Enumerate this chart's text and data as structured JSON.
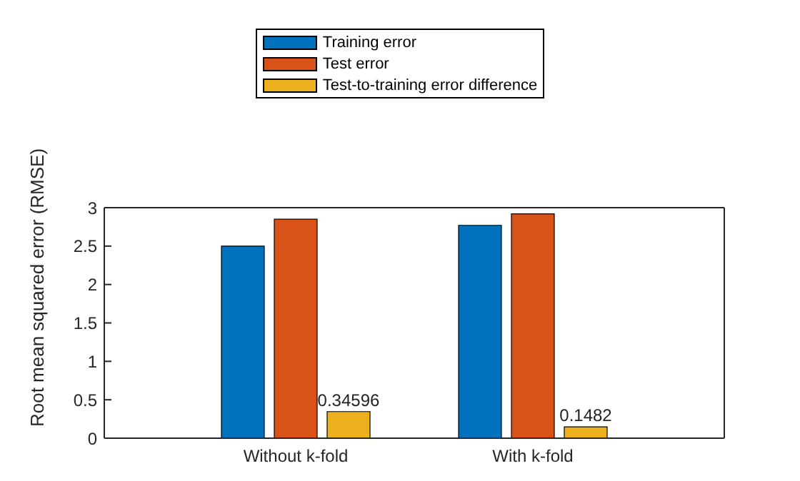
{
  "chart_data": {
    "type": "bar",
    "ylabel": "Root mean squared error (RMSE)",
    "categories": [
      "Without k-fold",
      "With k-fold"
    ],
    "series": [
      {
        "name": "Training error",
        "color": "#0072bd",
        "values": [
          2.5,
          2.77
        ]
      },
      {
        "name": "Test error",
        "color": "#d95319",
        "values": [
          2.85,
          2.92
        ]
      },
      {
        "name": "Test-to-training error difference",
        "color": "#edb120",
        "values": [
          0.34596,
          0.1482
        ],
        "value_labels": [
          "0.34596",
          "0.1482"
        ]
      }
    ],
    "ylim": [
      0,
      3
    ],
    "yticks": [
      0,
      0.5,
      1,
      1.5,
      2,
      2.5,
      3
    ],
    "grid": false,
    "legend": "top"
  }
}
